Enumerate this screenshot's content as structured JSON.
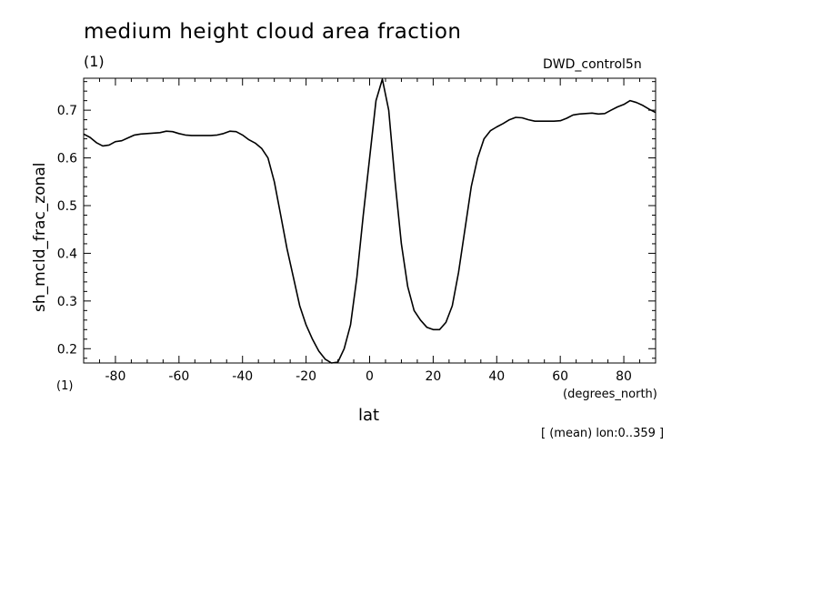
{
  "header": {
    "title": "medium height cloud area fraction",
    "subtitle_left": "(1)",
    "subtitle_right": "DWD_control5n"
  },
  "footer": {
    "y_units": "(1)",
    "x_units": "(degrees_north)",
    "note": "[ (mean) lon:0..359 ]"
  },
  "chart_data": {
    "type": "line",
    "title": "medium height cloud area fraction",
    "xlabel": "lat",
    "ylabel": "sh_mcld_frac_zonal",
    "xlim": [
      -90,
      90
    ],
    "ylim": [
      0.17,
      0.767
    ],
    "x_ticks": [
      -80,
      -60,
      -40,
      -20,
      0,
      20,
      40,
      60,
      80
    ],
    "x_tick_labels": [
      "-80",
      "-60",
      "-40",
      "-20",
      "0",
      "20",
      "40",
      "60",
      "80"
    ],
    "y_ticks": [
      0.2,
      0.3,
      0.4,
      0.5,
      0.6,
      0.7
    ],
    "y_tick_labels": [
      "0.2",
      "0.3",
      "0.4",
      "0.5",
      "0.6",
      "0.7"
    ],
    "grid": false,
    "line_color": "#000000",
    "series": [
      {
        "x": [
          -90,
          -88,
          -86,
          -84,
          -82,
          -80,
          -78,
          -76,
          -74,
          -72,
          -70,
          -68,
          -66,
          -64,
          -62,
          -60,
          -58,
          -56,
          -54,
          -52,
          -50,
          -48,
          -46,
          -44,
          -42,
          -40,
          -38,
          -36,
          -34,
          -32,
          -30,
          -28,
          -26,
          -24,
          -22,
          -20,
          -18,
          -16,
          -14,
          -12,
          -10,
          -8,
          -6,
          -4,
          -2,
          0,
          2,
          4,
          6,
          8,
          10,
          12,
          14,
          16,
          18,
          20,
          22,
          24,
          26,
          28,
          30,
          32,
          34,
          36,
          38,
          40,
          42,
          44,
          46,
          48,
          50,
          52,
          54,
          56,
          58,
          60,
          62,
          64,
          66,
          68,
          70,
          72,
          74,
          76,
          78,
          80,
          82,
          84,
          86,
          88,
          90
        ],
        "y": [
          0.65,
          0.643,
          0.632,
          0.625,
          0.627,
          0.634,
          0.636,
          0.642,
          0.648,
          0.65,
          0.651,
          0.652,
          0.653,
          0.656,
          0.655,
          0.651,
          0.648,
          0.647,
          0.647,
          0.647,
          0.647,
          0.648,
          0.651,
          0.656,
          0.655,
          0.648,
          0.638,
          0.631,
          0.62,
          0.6,
          0.55,
          0.48,
          0.41,
          0.35,
          0.29,
          0.25,
          0.22,
          0.195,
          0.178,
          0.17,
          0.172,
          0.2,
          0.25,
          0.35,
          0.48,
          0.6,
          0.72,
          0.765,
          0.7,
          0.55,
          0.42,
          0.33,
          0.28,
          0.26,
          0.245,
          0.24,
          0.24,
          0.255,
          0.29,
          0.36,
          0.45,
          0.54,
          0.6,
          0.64,
          0.657,
          0.665,
          0.672,
          0.68,
          0.685,
          0.684,
          0.68,
          0.677,
          0.677,
          0.677,
          0.677,
          0.678,
          0.683,
          0.69,
          0.692,
          0.693,
          0.694,
          0.692,
          0.693,
          0.7,
          0.707,
          0.712,
          0.72,
          0.716,
          0.71,
          0.702,
          0.695
        ]
      }
    ]
  }
}
